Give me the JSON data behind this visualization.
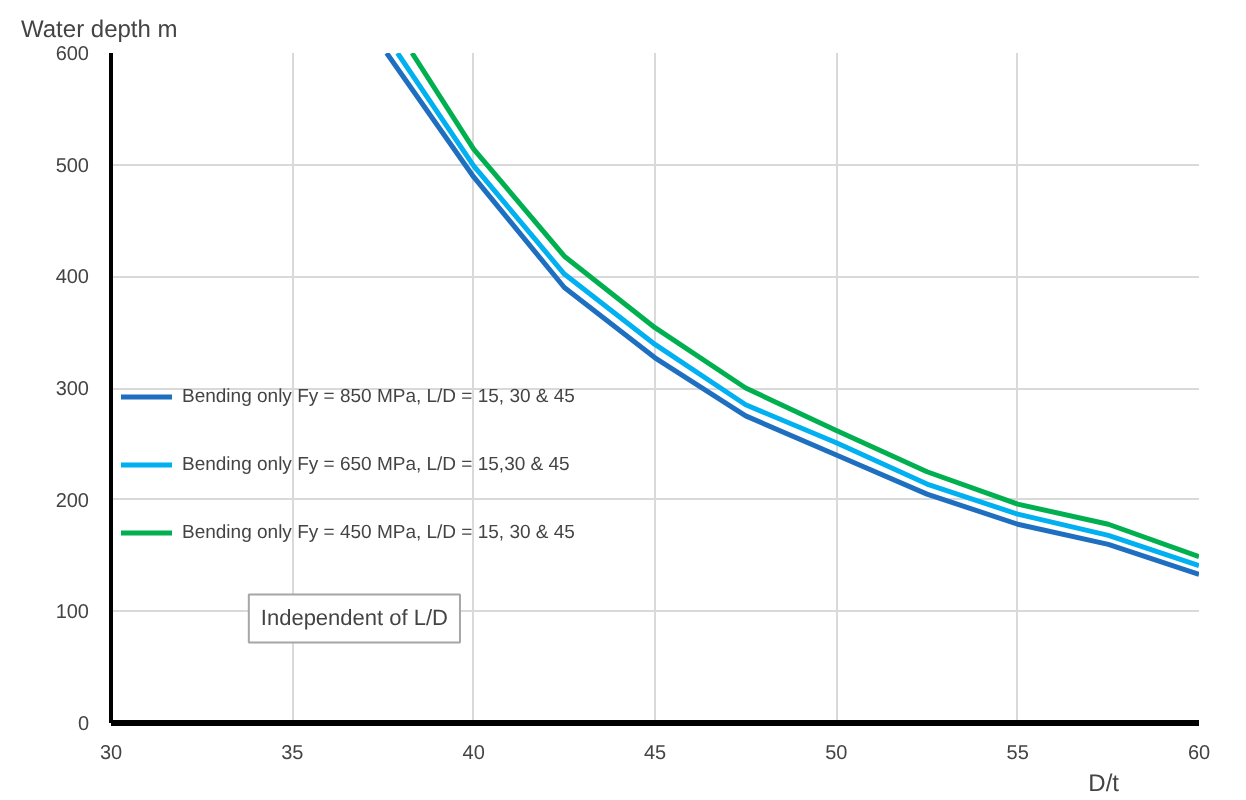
{
  "chart_data": {
    "type": "line",
    "xlabel": "D/t",
    "ylabel": "Water depth m",
    "xlim": [
      30,
      60
    ],
    "ylim": [
      0,
      600
    ],
    "xticks": [
      30,
      35,
      40,
      45,
      50,
      55,
      60
    ],
    "yticks": [
      0,
      100,
      200,
      300,
      400,
      500,
      600
    ],
    "grid": true,
    "legend": "left",
    "marker": "none",
    "line_style": "solid",
    "annotations": [
      "Independent of L/D"
    ],
    "series": [
      {
        "name": "Bending only Fy = 850 MPa, L/D = 15, 30 & 45",
        "color": "#1f6fc0",
        "x": [
          37.6,
          40,
          42.5,
          45,
          47.5,
          50,
          52.5,
          55,
          57.5,
          60
        ],
        "values": [
          600,
          489,
          390,
          327,
          275,
          240,
          205,
          178,
          160,
          133
        ]
      },
      {
        "name": "Bending only Fy = 650 MPa, L/D = 15,30 & 45",
        "color": "#00b0f0",
        "x": [
          37.9,
          40,
          42.5,
          45,
          47.5,
          50,
          52.5,
          55,
          57.5,
          60
        ],
        "values": [
          600,
          499,
          402,
          339,
          285,
          251,
          214,
          187,
          168,
          141
        ]
      },
      {
        "name": "Bending only Fy = 450 MPa, L/D = 15, 30 & 45",
        "color": "#00b050",
        "x": [
          38.3,
          40,
          42.5,
          45,
          47.5,
          50,
          52.5,
          55,
          57.5,
          60
        ],
        "values": [
          600,
          514,
          418,
          354,
          300,
          262,
          225,
          196,
          178,
          149
        ]
      }
    ]
  }
}
